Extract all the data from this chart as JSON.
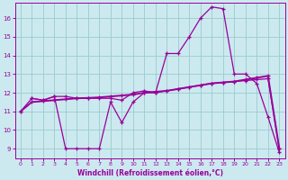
{
  "xlabel": "Windchill (Refroidissement éolien,°C)",
  "xlim": [
    -0.5,
    23.5
  ],
  "ylim": [
    8.5,
    16.8
  ],
  "yticks": [
    9,
    10,
    11,
    12,
    13,
    14,
    15,
    16
  ],
  "xticks": [
    0,
    1,
    2,
    3,
    4,
    5,
    6,
    7,
    8,
    9,
    10,
    11,
    12,
    13,
    14,
    15,
    16,
    17,
    18,
    19,
    20,
    21,
    22,
    23
  ],
  "bg_color": "#cce9f0",
  "line_color": "#990099",
  "grid_color": "#99cccc",
  "line1_x": [
    0,
    1,
    2,
    3,
    4,
    5,
    6,
    7,
    8,
    9,
    10,
    11,
    12,
    13,
    14,
    15,
    16,
    17,
    18,
    19,
    20,
    21,
    22,
    23
  ],
  "line1_y": [
    11.0,
    11.7,
    11.6,
    11.8,
    9.0,
    9.0,
    9.0,
    9.0,
    11.5,
    10.4,
    11.5,
    12.0,
    12.0,
    14.1,
    14.1,
    15.0,
    16.0,
    16.6,
    16.5,
    13.0,
    13.0,
    12.5,
    10.7,
    8.8
  ],
  "line2_x": [
    0,
    1,
    2,
    3,
    4,
    5,
    6,
    7,
    8,
    9,
    10,
    11,
    12,
    13,
    14,
    15,
    16,
    17,
    18,
    19,
    20,
    21,
    22,
    23
  ],
  "line2_y": [
    11.0,
    11.5,
    11.55,
    11.6,
    11.65,
    11.7,
    11.72,
    11.75,
    11.8,
    11.85,
    11.9,
    12.0,
    12.05,
    12.1,
    12.2,
    12.3,
    12.4,
    12.5,
    12.55,
    12.6,
    12.7,
    12.8,
    12.9,
    9.0
  ],
  "line3_x": [
    1,
    2,
    3,
    4,
    5,
    6,
    7,
    8,
    9,
    10,
    11,
    12,
    13,
    14,
    15,
    16,
    17,
    18,
    19,
    20,
    21,
    22,
    23
  ],
  "line3_y": [
    11.7,
    11.6,
    11.8,
    11.8,
    11.7,
    11.7,
    11.7,
    11.7,
    11.6,
    12.0,
    12.1,
    12.0,
    12.1,
    12.2,
    12.3,
    12.4,
    12.5,
    12.55,
    12.6,
    12.65,
    12.7,
    12.75,
    9.0
  ]
}
